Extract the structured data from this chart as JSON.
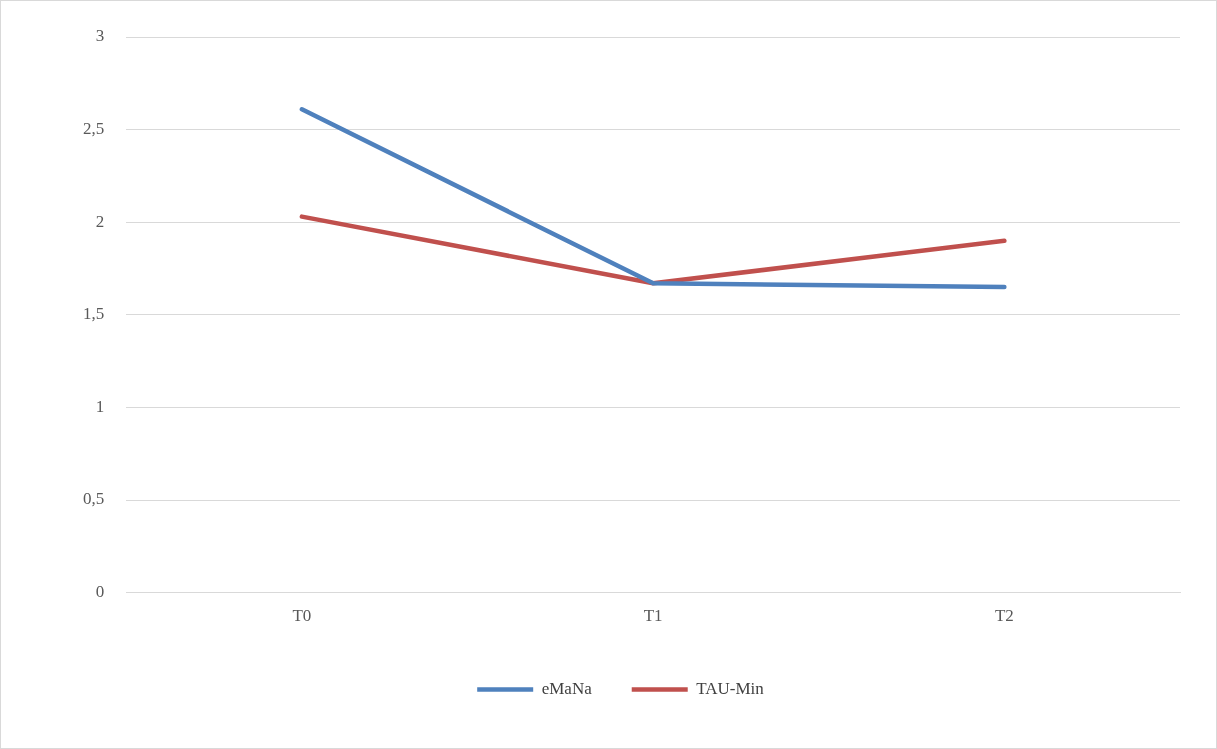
{
  "chart_data": {
    "type": "line",
    "categories": [
      "T0",
      "T1",
      "T2"
    ],
    "series": [
      {
        "name": "eMaNa",
        "color": "#4f81bd",
        "values": [
          2.61,
          1.67,
          1.65
        ]
      },
      {
        "name": "TAU-Min",
        "color": "#c0504d",
        "values": [
          2.03,
          1.67,
          1.9
        ]
      }
    ],
    "ylim": [
      0,
      3
    ],
    "yticks": [
      0,
      {
        "value": 0.5,
        "label": "0,5"
      },
      1,
      {
        "value": 1.5,
        "label": "1,5"
      },
      2,
      {
        "value": 2.5,
        "label": "2,5"
      },
      3
    ],
    "grid": "y",
    "legend": "bottom",
    "marker": "none",
    "line_style": "solid"
  }
}
